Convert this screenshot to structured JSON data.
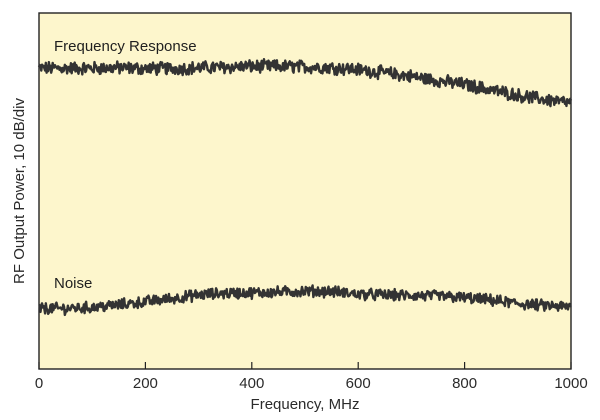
{
  "chart_data": {
    "type": "line",
    "title": "",
    "xlabel": "Frequency, MHz",
    "ylabel": "RF Output Power, 10 dB/div",
    "xlim": [
      0,
      1000
    ],
    "ylim": [
      0,
      100
    ],
    "x_ticks": [
      0,
      200,
      400,
      600,
      800,
      1000
    ],
    "x_tick_labels": [
      "0",
      "200",
      "400",
      "600",
      "800",
      "1000"
    ],
    "y_ticks_shown": false,
    "grid": false,
    "legend": "none",
    "series": [
      {
        "name": "Frequency Response",
        "noise_amplitude": 1.6,
        "x": [
          0,
          50,
          100,
          150,
          200,
          250,
          300,
          350,
          400,
          450,
          500,
          550,
          600,
          650,
          700,
          750,
          800,
          850,
          900,
          950,
          1000
        ],
        "values": [
          84.5,
          84.5,
          84.5,
          84.6,
          84.4,
          84.4,
          84.6,
          84.8,
          85.0,
          85.0,
          84.9,
          84.7,
          84.1,
          83.2,
          82.2,
          81.0,
          79.9,
          78.4,
          76.9,
          75.7,
          74.7
        ]
      },
      {
        "name": "Noise",
        "noise_amplitude": 1.4,
        "x": [
          0,
          50,
          100,
          150,
          200,
          250,
          300,
          350,
          400,
          450,
          500,
          550,
          600,
          650,
          700,
          750,
          800,
          850,
          900,
          950,
          1000
        ],
        "values": [
          17.0,
          17.0,
          17.3,
          18.0,
          18.9,
          19.8,
          20.8,
          21.3,
          21.4,
          21.6,
          21.9,
          21.8,
          21.0,
          20.8,
          20.6,
          20.5,
          20.0,
          19.3,
          18.4,
          17.8,
          17.4
        ]
      }
    ]
  },
  "colors": {
    "plot_background": "#fdf6cc",
    "trace": "#333333",
    "frame": "#222222",
    "text": "#2b2b2b"
  }
}
